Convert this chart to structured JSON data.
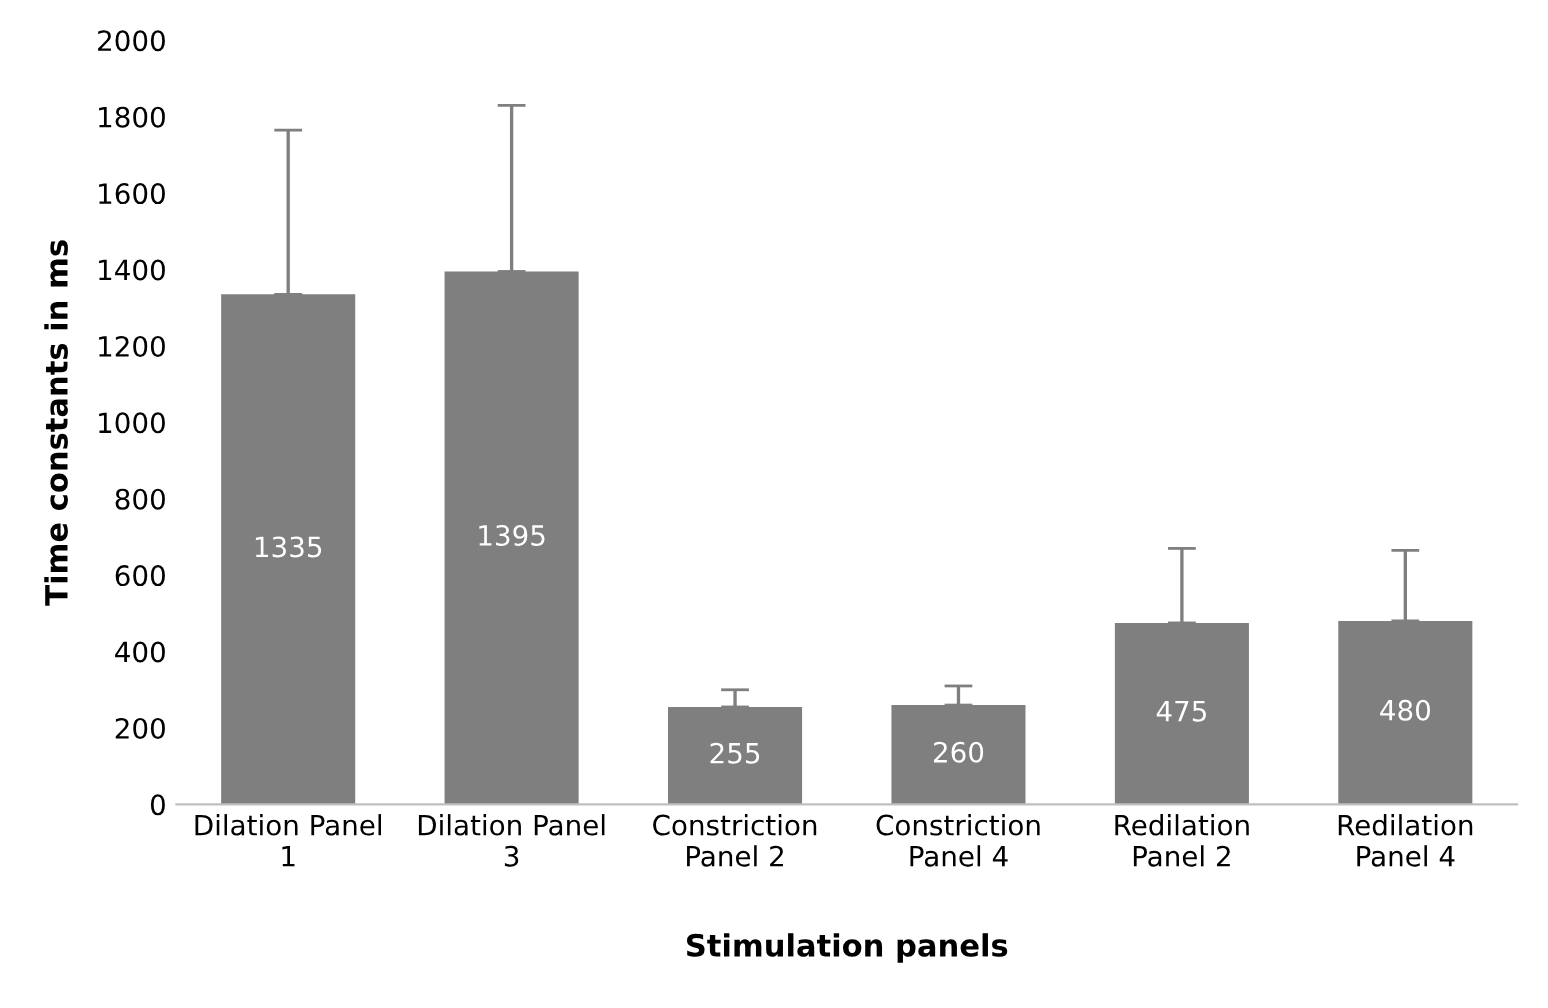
{
  "chart_data": {
    "type": "bar",
    "xlabel": "Stimulation panels",
    "ylabel": "Time constants in ms",
    "categories": [
      "Dilation Panel\n1",
      "Dilation Panel\n3",
      "Constriction\nPanel 2",
      "Constriction\nPanel 4",
      "Redilation\nPanel 2",
      "Redilation\nPanel 4"
    ],
    "values": [
      1335,
      1395,
      255,
      260,
      475,
      480
    ],
    "errors": [
      [
        1335,
        1765
      ],
      [
        1395,
        1830
      ],
      [
        255,
        300
      ],
      [
        260,
        310
      ],
      [
        475,
        670
      ],
      [
        480,
        665
      ]
    ],
    "color": "#7f7f7f",
    "data_labels": true,
    "ylim": [
      0,
      2000
    ],
    "yticks": [
      0,
      200,
      400,
      600,
      800,
      1000,
      1200,
      1400,
      1600,
      1800,
      2000
    ],
    "grid": false,
    "legend": false
  }
}
